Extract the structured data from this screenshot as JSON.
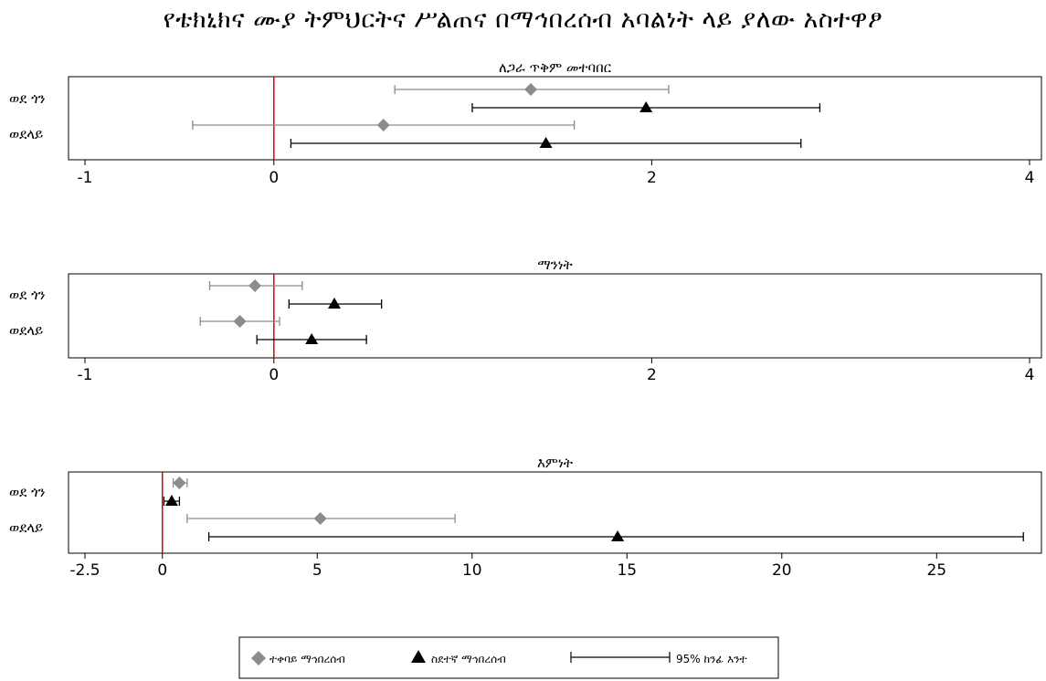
{
  "title": "የቴክኒክና ሙያ ትምህርትና ሥልጠና በማኅበረሰብ አባልነት ላይ ያለው አስተዋፆ",
  "colors": {
    "series1": "#8c8c8c",
    "series2": "#000000",
    "reference_line": "#e00000",
    "frame": "#000000"
  },
  "chart_data": [
    {
      "type": "scatter",
      "title": "ለጋራ ጥቅም መተባበር",
      "rows": [
        "ወደ ጎን",
        "ወደላይ"
      ],
      "xlim": [
        -1,
        4
      ],
      "xticks": [
        -1,
        0,
        2,
        4
      ],
      "tick_labels": [
        "-1",
        "0",
        "2",
        "4"
      ],
      "reference_x": 0,
      "series": [
        {
          "name": "ተቀባይ ማኅበረሰብ",
          "marker": "diamond",
          "points": [
            {
              "row": 0,
              "estimate": 1.36,
              "lower": 0.64,
              "upper": 2.09
            },
            {
              "row": 1,
              "estimate": 0.58,
              "lower": -0.43,
              "upper": 1.59
            }
          ]
        },
        {
          "name": "ስደተኛ ማኅበረሰብ",
          "marker": "triangle",
          "points": [
            {
              "row": 0,
              "estimate": 1.97,
              "lower": 1.05,
              "upper": 2.89
            },
            {
              "row": 1,
              "estimate": 1.44,
              "lower": 0.09,
              "upper": 2.79
            }
          ]
        }
      ]
    },
    {
      "type": "scatter",
      "title": "ማንነት",
      "rows": [
        "ወደ ጎን",
        "ወደላይ"
      ],
      "xlim": [
        -1,
        4
      ],
      "xticks": [
        -1,
        0,
        2,
        4
      ],
      "tick_labels": [
        "-1",
        "0",
        "2",
        "4"
      ],
      "reference_x": 0,
      "series": [
        {
          "name": "ተቀባይ ማኅበረሰብ",
          "marker": "diamond",
          "points": [
            {
              "row": 0,
              "estimate": -0.1,
              "lower": -0.34,
              "upper": 0.15
            },
            {
              "row": 1,
              "estimate": -0.18,
              "lower": -0.39,
              "upper": 0.03
            }
          ]
        },
        {
          "name": "ስደተኛ ማኅበረሰብ",
          "marker": "triangle",
          "points": [
            {
              "row": 0,
              "estimate": 0.32,
              "lower": 0.08,
              "upper": 0.57
            },
            {
              "row": 1,
              "estimate": 0.2,
              "lower": -0.09,
              "upper": 0.49
            }
          ]
        }
      ]
    },
    {
      "type": "scatter",
      "title": "እምነት",
      "rows": [
        "ወደ ጎን",
        "ወደላይ"
      ],
      "xlim": [
        -2.5,
        28
      ],
      "xticks": [
        -2.5,
        0,
        5,
        10,
        15,
        20,
        25
      ],
      "tick_labels": [
        "-2.5",
        "0",
        "5",
        "10",
        "15",
        "20",
        "25"
      ],
      "reference_x": 0,
      "series": [
        {
          "name": "ተቀባይ ማኅበረሰብ",
          "marker": "diamond",
          "points": [
            {
              "row": 0,
              "estimate": 0.55,
              "lower": 0.35,
              "upper": 0.8
            },
            {
              "row": 1,
              "estimate": 5.1,
              "lower": 0.8,
              "upper": 9.45
            }
          ]
        },
        {
          "name": "ስደተኛ ማኅበረሰብ",
          "marker": "triangle",
          "points": [
            {
              "row": 0,
              "estimate": 0.3,
              "lower": 0.05,
              "upper": 0.55
            },
            {
              "row": 1,
              "estimate": 14.7,
              "lower": 1.5,
              "upper": 27.8
            }
          ]
        }
      ]
    }
  ],
  "legend": {
    "placement": "bottom",
    "items": [
      {
        "label": "ተቀባይ ማኅበረሰብ",
        "symbol": "diamond"
      },
      {
        "label": "ስደተኛ ማኅበረሰብ",
        "symbol": "triangle"
      },
      {
        "label": "95% ከንፊ እንተ",
        "symbol": "ci-line"
      }
    ]
  }
}
